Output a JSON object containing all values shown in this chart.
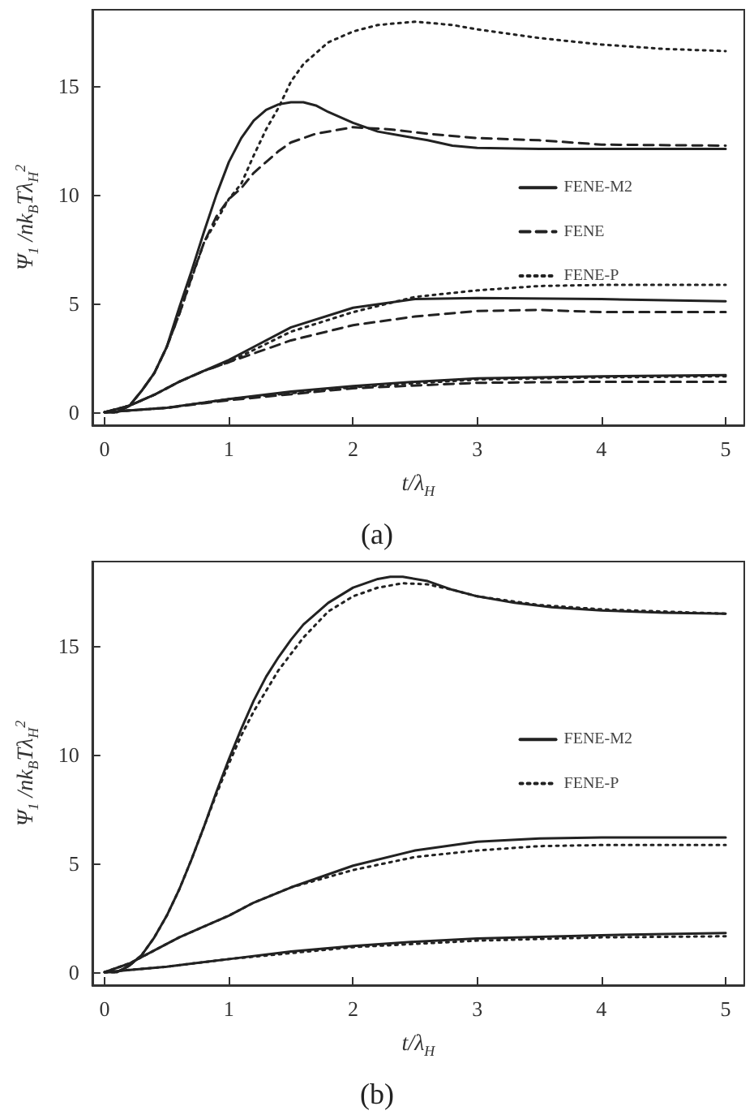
{
  "chart_data": [
    {
      "type": "line",
      "xlabel": "t/λ$_{H}$",
      "ylabel": "Ψ$_{1}$ /nk$_{B}$Tλ$_{H}$$^{2}$",
      "annotations": [
        "(a)"
      ],
      "xlim": [
        -0.1,
        5.15
      ],
      "ylim": [
        -0.6,
        18.5
      ],
      "xticks": [
        0,
        1,
        2,
        3,
        4,
        5
      ],
      "yticks": [
        0,
        5,
        10,
        15
      ],
      "grid": false,
      "legend": "right",
      "marker": "none",
      "series": [
        {
          "name": "FENE-M2",
          "color": "#222222",
          "line_style": "solid",
          "x": [
            0,
            0.1,
            0.2,
            0.3,
            0.4,
            0.5,
            0.6,
            0.7,
            0.8,
            0.9,
            1.0,
            1.1,
            1.2,
            1.3,
            1.4,
            1.5,
            1.6,
            1.7,
            1.8,
            2.0,
            2.2,
            2.4,
            2.6,
            2.8,
            3.0,
            3.5,
            4,
            5
          ],
          "values": [
            0,
            0,
            0.3,
            1,
            1.8,
            3,
            4.8,
            6.5,
            8.3,
            10,
            11.5,
            12.6,
            13.4,
            13.9,
            14.15,
            14.25,
            14.25,
            14.1,
            13.8,
            13.3,
            12.9,
            12.7,
            12.5,
            12.25,
            12.15,
            12.1,
            12.1,
            12.1
          ]
        },
        {
          "name": "FENE",
          "color": "#222222",
          "line_style": "dashed",
          "x": [
            0,
            0.1,
            0.2,
            0.3,
            0.4,
            0.5,
            0.6,
            0.7,
            0.8,
            0.9,
            1.0,
            1.1,
            1.2,
            1.3,
            1.4,
            1.5,
            1.7,
            2.0,
            2.3,
            2.6,
            3,
            3.5,
            4,
            5
          ],
          "values": [
            0,
            0,
            0.3,
            1,
            1.8,
            3,
            4.5,
            6.2,
            7.8,
            9,
            9.8,
            10.3,
            11,
            11.5,
            12,
            12.4,
            12.8,
            13.1,
            13,
            12.8,
            12.6,
            12.5,
            12.3,
            12.25
          ]
        },
        {
          "name": "FENE-P",
          "color": "#222222",
          "line_style": "dotted",
          "x": [
            0,
            0.1,
            0.2,
            0.3,
            0.4,
            0.5,
            0.6,
            0.8,
            1.0,
            1.1,
            1.2,
            1.3,
            1.4,
            1.5,
            1.6,
            1.8,
            2.0,
            2.2,
            2.5,
            2.8,
            3.0,
            3.5,
            4.0,
            4.5,
            5
          ],
          "values": [
            0,
            0,
            0.3,
            1,
            1.8,
            3,
            4.5,
            7.8,
            9.8,
            10.5,
            11.8,
            13,
            14,
            15.2,
            16,
            17,
            17.5,
            17.8,
            17.95,
            17.8,
            17.6,
            17.2,
            16.9,
            16.7,
            16.6
          ]
        },
        {
          "color": "#222222",
          "line_style": "solid",
          "x": [
            0,
            0.2,
            0.4,
            0.6,
            0.8,
            1.0,
            1.2,
            1.5,
            2,
            2.5,
            3,
            4,
            5
          ],
          "values": [
            0,
            0.3,
            0.8,
            1.4,
            1.9,
            2.4,
            3,
            3.9,
            4.8,
            5.2,
            5.25,
            5.2,
            5.1
          ]
        },
        {
          "color": "#222222",
          "line_style": "dashed",
          "x": [
            0,
            0.2,
            0.4,
            0.6,
            0.8,
            1.0,
            1.5,
            2,
            2.5,
            3,
            3.5,
            4,
            5
          ],
          "values": [
            0,
            0.3,
            0.8,
            1.4,
            1.9,
            2.3,
            3.3,
            4,
            4.4,
            4.65,
            4.7,
            4.6,
            4.6
          ]
        },
        {
          "color": "#222222",
          "line_style": "dotted",
          "x": [
            0,
            0.2,
            0.4,
            0.6,
            0.8,
            1.0,
            1.5,
            2,
            2.5,
            3,
            3.5,
            4,
            5
          ],
          "values": [
            0,
            0.3,
            0.8,
            1.4,
            1.9,
            2.3,
            3.7,
            4.6,
            5.3,
            5.6,
            5.8,
            5.85,
            5.85
          ]
        },
        {
          "color": "#222222",
          "line_style": "solid",
          "x": [
            0,
            0.5,
            1,
            1.5,
            2,
            2.5,
            3,
            4,
            5
          ],
          "values": [
            0,
            0.2,
            0.6,
            0.95,
            1.2,
            1.4,
            1.55,
            1.65,
            1.7
          ]
        },
        {
          "color": "#222222",
          "line_style": "dashed",
          "x": [
            0,
            0.5,
            1,
            2,
            3,
            4,
            5
          ],
          "values": [
            0,
            0.2,
            0.55,
            1.1,
            1.35,
            1.4,
            1.4
          ]
        },
        {
          "color": "#222222",
          "line_style": "dotted",
          "x": [
            0,
            0.5,
            1,
            2,
            3,
            4,
            5
          ],
          "values": [
            0,
            0.2,
            0.6,
            1.15,
            1.5,
            1.6,
            1.65
          ]
        }
      ]
    },
    {
      "type": "line",
      "xlabel": "t/λ$_{H}$",
      "ylabel": "Ψ$_{1}$ /nk$_{B}$Tλ$_{H}$$^{2}$",
      "annotations": [
        "(b)"
      ],
      "xlim": [
        -0.1,
        5.15
      ],
      "ylim": [
        -0.6,
        18.9
      ],
      "xticks": [
        0,
        1,
        2,
        3,
        4,
        5
      ],
      "yticks": [
        0,
        5,
        10,
        15
      ],
      "grid": false,
      "legend": "right",
      "marker": "none",
      "series": [
        {
          "name": "FENE-M2",
          "color": "#222222",
          "line_style": "solid",
          "x": [
            0,
            0.1,
            0.2,
            0.3,
            0.4,
            0.5,
            0.6,
            0.7,
            0.8,
            0.9,
            1.0,
            1.1,
            1.2,
            1.3,
            1.4,
            1.5,
            1.6,
            1.8,
            2.0,
            2.2,
            2.3,
            2.4,
            2.6,
            2.8,
            3.0,
            3.3,
            3.6,
            4,
            4.5,
            5
          ],
          "values": [
            0,
            0,
            0.3,
            0.8,
            1.6,
            2.6,
            3.8,
            5.2,
            6.7,
            8.3,
            9.8,
            11.2,
            12.5,
            13.6,
            14.5,
            15.3,
            16,
            17,
            17.7,
            18.1,
            18.2,
            18.2,
            18,
            17.6,
            17.3,
            17,
            16.8,
            16.65,
            16.55,
            16.5
          ]
        },
        {
          "name": "FENE-P",
          "color": "#222222",
          "line_style": "dotted",
          "x": [
            0,
            0.1,
            0.2,
            0.3,
            0.4,
            0.5,
            0.6,
            0.7,
            0.8,
            0.9,
            1.0,
            1.1,
            1.2,
            1.4,
            1.6,
            1.8,
            2.0,
            2.2,
            2.4,
            2.6,
            2.8,
            3.0,
            3.5,
            4,
            5
          ],
          "values": [
            0,
            0,
            0.3,
            0.8,
            1.6,
            2.6,
            3.8,
            5.2,
            6.7,
            8.2,
            9.6,
            10.9,
            12,
            13.9,
            15.4,
            16.6,
            17.3,
            17.7,
            17.9,
            17.85,
            17.6,
            17.3,
            16.9,
            16.7,
            16.5
          ]
        },
        {
          "color": "#222222",
          "line_style": "solid",
          "x": [
            0,
            0.2,
            0.4,
            0.6,
            0.8,
            1,
            1.2,
            1.5,
            2,
            2.5,
            3,
            3.5,
            4,
            5
          ],
          "values": [
            0,
            0.4,
            1,
            1.6,
            2.1,
            2.6,
            3.2,
            3.9,
            4.9,
            5.6,
            6,
            6.15,
            6.2,
            6.2
          ]
        },
        {
          "color": "#222222",
          "line_style": "dotted",
          "x": [
            0,
            0.2,
            0.4,
            0.6,
            0.8,
            1,
            1.2,
            1.5,
            2,
            2.5,
            3,
            3.5,
            4,
            5
          ],
          "values": [
            0,
            0.4,
            1,
            1.6,
            2.1,
            2.6,
            3.2,
            3.9,
            4.7,
            5.3,
            5.6,
            5.8,
            5.85,
            5.85
          ]
        },
        {
          "color": "#222222",
          "line_style": "solid",
          "x": [
            0,
            0.5,
            1,
            1.5,
            2,
            2.5,
            3,
            4,
            5
          ],
          "values": [
            0,
            0.25,
            0.6,
            0.95,
            1.2,
            1.4,
            1.55,
            1.7,
            1.8
          ]
        },
        {
          "color": "#222222",
          "line_style": "dotted",
          "x": [
            0,
            0.5,
            1,
            2,
            3,
            4,
            5
          ],
          "values": [
            0,
            0.25,
            0.6,
            1.15,
            1.45,
            1.6,
            1.65
          ]
        }
      ]
    }
  ]
}
